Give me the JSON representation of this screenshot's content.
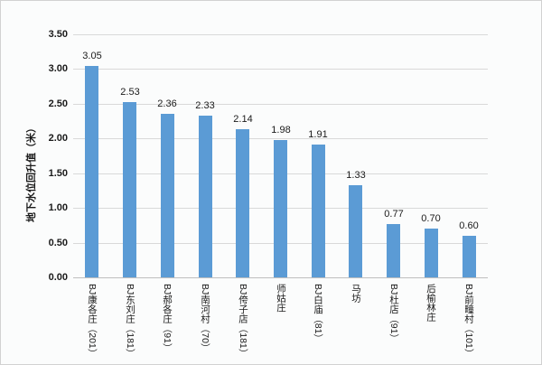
{
  "chart_data": {
    "type": "bar",
    "title": "",
    "xlabel": "",
    "ylabel": "地下水位回升值（米）",
    "categories": [
      "BJ康各庄（201）",
      "BJ东刘庄（181）",
      "BJ郝各庄（91）",
      "BJ南河村（70）",
      "BJ侉子店（181）",
      "师姑庄",
      "BJ白庙（81）",
      "马坊",
      "BJ杜店（91）",
      "后榆林庄",
      "BJ前疃村（101）"
    ],
    "values": [
      3.05,
      2.53,
      2.36,
      2.33,
      2.14,
      1.98,
      1.91,
      1.33,
      0.77,
      0.7,
      0.6
    ],
    "value_labels": [
      "3.05",
      "2.53",
      "2.36",
      "2.33",
      "2.14",
      "1.98",
      "1.91",
      "1.33",
      "0.77",
      "0.70",
      "0.60"
    ],
    "ylim": [
      0,
      3.5
    ],
    "ytick_step": 0.5,
    "ytick_labels": [
      "0.00",
      "0.50",
      "1.00",
      "1.50",
      "2.00",
      "2.50",
      "3.00",
      "3.50"
    ],
    "grid": true,
    "legend": "none",
    "bar_color": "#5B9BD5",
    "gridline_color": "#D9D9D9",
    "axis_line_color": "#BFBFBF",
    "text_color": "#1a1a1a",
    "background_color": "#FBFCFC"
  }
}
